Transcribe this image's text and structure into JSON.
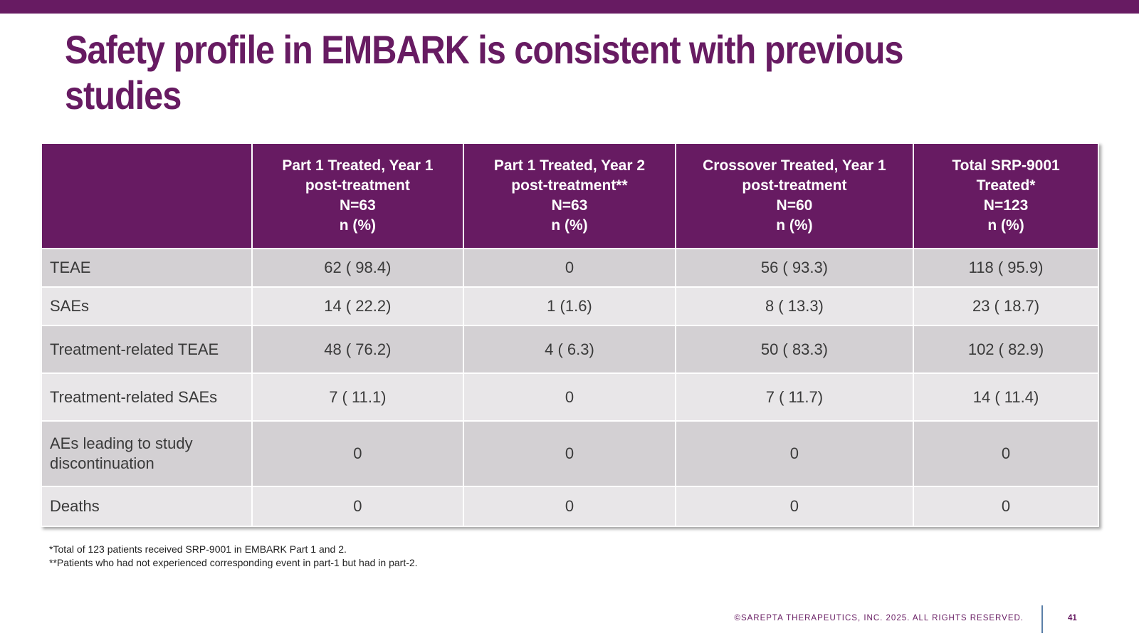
{
  "title": "Safety profile in EMBARK is consistent with previous studies",
  "table": {
    "headers": [
      "",
      "Part 1 Treated, Year 1\npost-treatment\nN=63\nn (%)",
      "Part 1 Treated, Year 2\npost-treatment**\nN=63\nn (%)",
      "Crossover Treated, Year 1\npost-treatment\nN=60\nn (%)",
      "Total SRP-9001\nTreated*\nN=123\nn (%)"
    ],
    "rows": [
      [
        "TEAE",
        "62 ( 98.4)",
        "0",
        "56 ( 93.3)",
        "118 ( 95.9)"
      ],
      [
        "SAEs",
        "14 ( 22.2)",
        "1 (1.6)",
        "8 ( 13.3)",
        "23 ( 18.7)"
      ],
      [
        "Treatment-related TEAE",
        "48 ( 76.2)",
        "4 ( 6.3)",
        "50 ( 83.3)",
        "102 ( 82.9)"
      ],
      [
        "Treatment-related SAEs",
        "7 ( 11.1)",
        "0",
        "7 ( 11.7)",
        "14 ( 11.4)"
      ],
      [
        "AEs leading to study\ndiscontinuation",
        "0",
        "0",
        "0",
        "0"
      ],
      [
        "Deaths",
        "0",
        "0",
        "0",
        "0"
      ]
    ]
  },
  "footnotes": [
    "*Total of 123 patients received SRP-9001 in EMBARK Part 1 and 2.",
    "**Patients who had not experienced corresponding event in part-1 but had in part-2."
  ],
  "footer": {
    "copyright": "©SAREPTA THERAPEUTICS, INC. 2025.  ALL RIGHTS RESERVED.",
    "page_number": "41"
  },
  "colors": {
    "brand_purple": "#671b62",
    "row_dark": "#d3d0d3",
    "row_light": "#e8e6e8"
  }
}
